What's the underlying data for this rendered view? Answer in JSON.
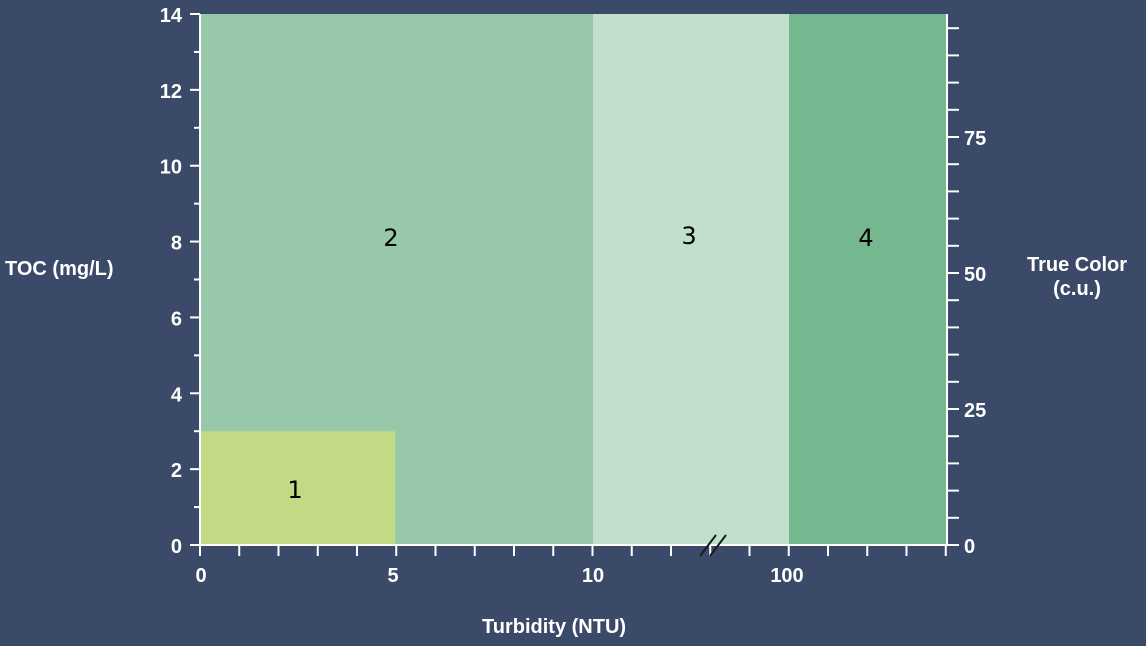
{
  "chart_data": {
    "type": "area",
    "xlabel": "Turbidity (NTU)",
    "ylabel_left": "TOC (mg/L)",
    "ylabel_right_line1": "True Color",
    "ylabel_right_line2": "(c.u.)",
    "y_left": {
      "ylim": [
        0,
        14
      ],
      "ticks": [
        "0",
        "2",
        "4",
        "6",
        "8",
        "10",
        "12",
        "14"
      ]
    },
    "y_right": {
      "ticks": [
        "0",
        "25",
        "50",
        "75"
      ]
    },
    "x_ticks": [
      "0",
      "5",
      "10",
      "100"
    ],
    "axis_break": "//",
    "regions": [
      {
        "label": "2",
        "x_from": "0",
        "x_to": "10",
        "toc_from": 0,
        "toc_to": 14,
        "color": "#98c8aa"
      },
      {
        "label": "3",
        "x_from": "10",
        "x_to": "100",
        "toc_from": 0,
        "toc_to": 14,
        "color": "#c1dfcb"
      },
      {
        "label": "4",
        "x_from": "100",
        "x_to": "",
        "toc_from": 0,
        "toc_to": 14,
        "color": "#75b890"
      },
      {
        "label": "1",
        "x_from": "0",
        "x_to": "5",
        "toc_from": 0,
        "toc_to": 3,
        "color": "#c2da84"
      }
    ],
    "grid": false,
    "legend": "none",
    "colors": {
      "background": "#3b4a69",
      "axis": "#ffffff"
    }
  }
}
